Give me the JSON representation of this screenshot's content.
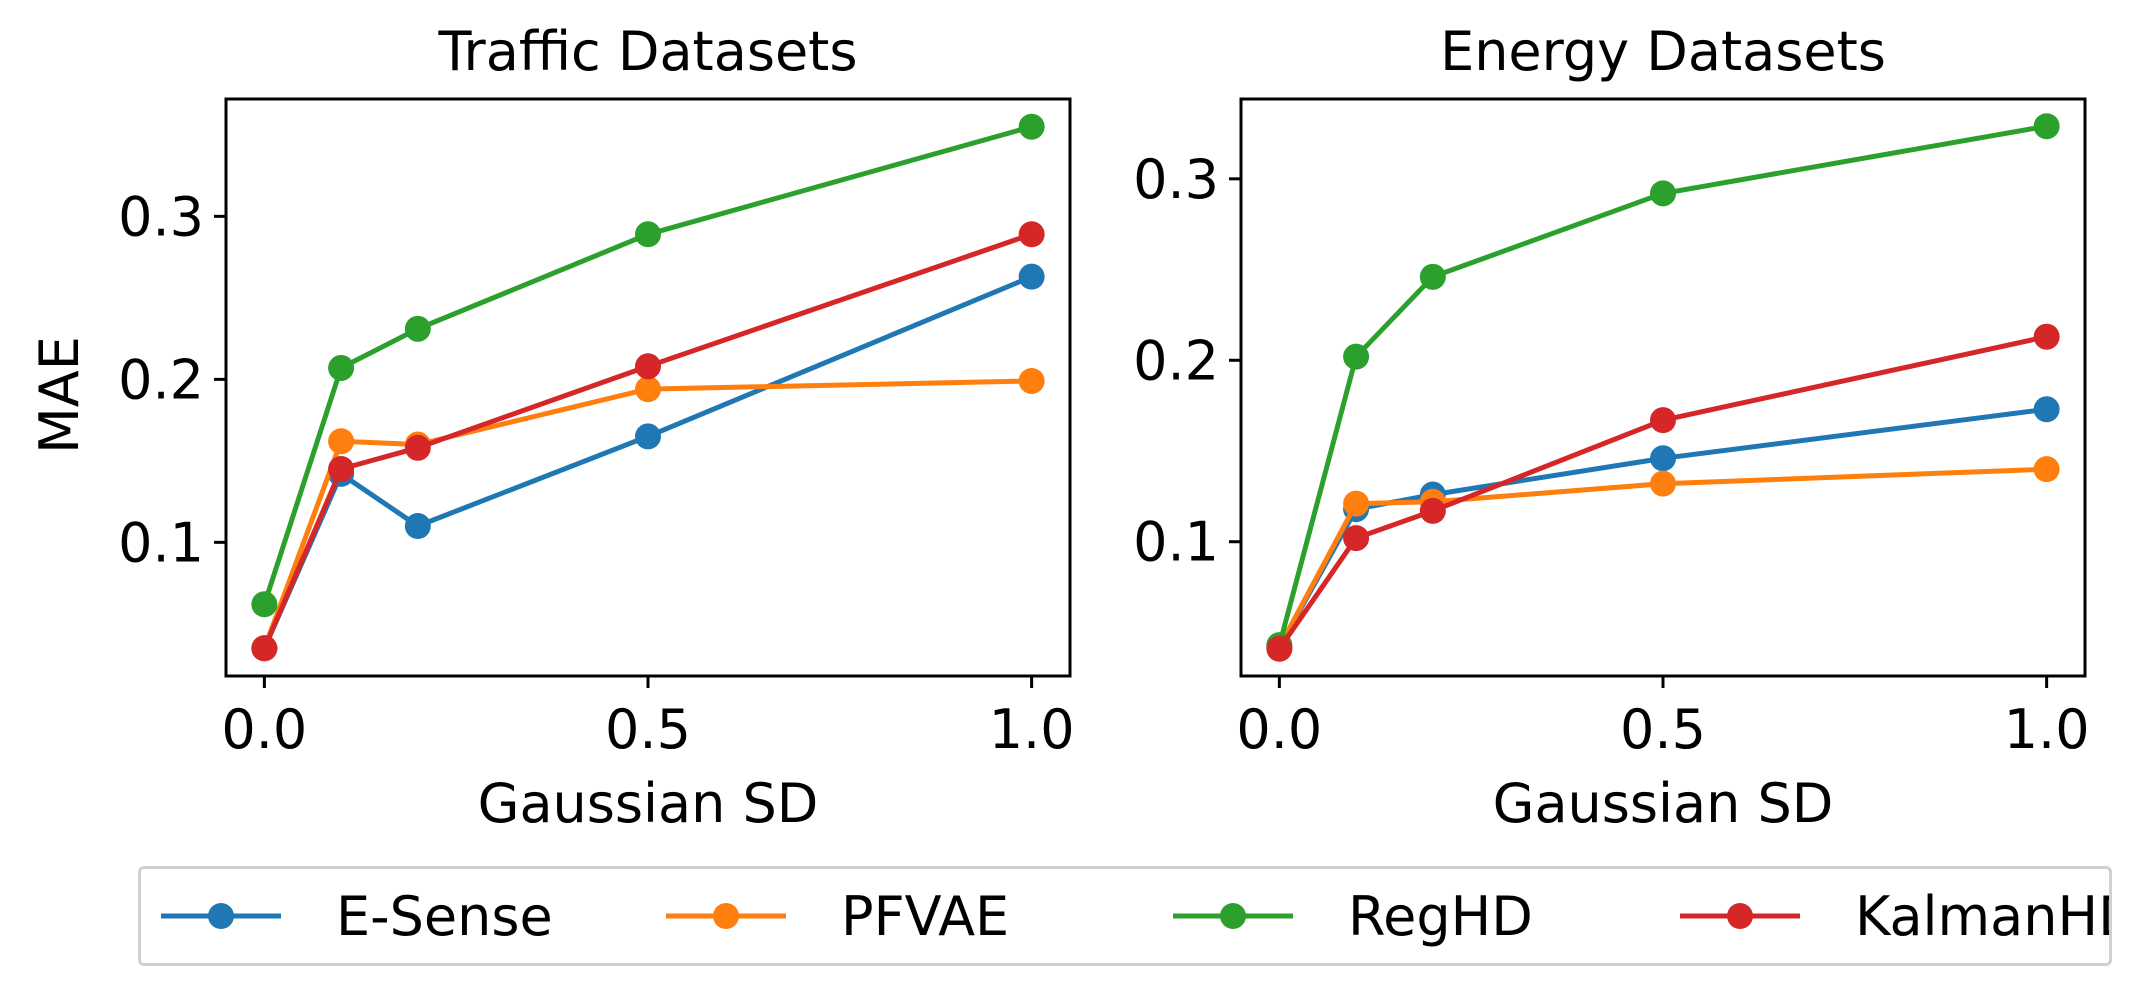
{
  "colors": {
    "E-Sense": "#1f77b4",
    "PFVAE": "#ff7f0e",
    "RegHD": "#2ca02c",
    "KalmanHD": "#d62728"
  },
  "legend": {
    "placement": "bottom",
    "entries": [
      "E-Sense",
      "PFVAE",
      "RegHD",
      "KalmanHD"
    ]
  },
  "chart_data": [
    {
      "type": "line",
      "title": "Traffic Datasets",
      "xlabel": "Gaussian SD",
      "ylabel": "MAE",
      "x": [
        0.0,
        0.1,
        0.2,
        0.5,
        1.0
      ],
      "xlim": [
        -0.05,
        1.05
      ],
      "ylim": [
        0.018,
        0.372
      ],
      "xticks": [
        "0.0",
        "0.5",
        "1.0"
      ],
      "yticks": [
        "0.1",
        "0.2",
        "0.3"
      ],
      "grid": false,
      "series": [
        {
          "name": "E-Sense",
          "values": [
            0.035,
            0.142,
            0.11,
            0.165,
            0.263
          ]
        },
        {
          "name": "PFVAE",
          "values": [
            0.035,
            0.162,
            0.16,
            0.194,
            0.199
          ]
        },
        {
          "name": "RegHD",
          "values": [
            0.062,
            0.207,
            0.231,
            0.289,
            0.355
          ]
        },
        {
          "name": "KalmanHD",
          "values": [
            0.035,
            0.145,
            0.158,
            0.208,
            0.289
          ]
        }
      ]
    },
    {
      "type": "line",
      "title": "Energy Datasets",
      "xlabel": "Gaussian SD",
      "ylabel": "",
      "x": [
        0.0,
        0.1,
        0.2,
        0.5,
        1.0
      ],
      "xlim": [
        -0.05,
        1.05
      ],
      "ylim": [
        0.026,
        0.344
      ],
      "xticks": [
        "0.0",
        "0.5",
        "1.0"
      ],
      "yticks": [
        "0.1",
        "0.2",
        "0.3"
      ],
      "grid": false,
      "series": [
        {
          "name": "E-Sense",
          "values": [
            0.042,
            0.118,
            0.126,
            0.146,
            0.173
          ]
        },
        {
          "name": "PFVAE",
          "values": [
            0.042,
            0.121,
            0.122,
            0.132,
            0.14
          ]
        },
        {
          "name": "RegHD",
          "values": [
            0.043,
            0.202,
            0.246,
            0.292,
            0.329
          ]
        },
        {
          "name": "KalmanHD",
          "values": [
            0.041,
            0.102,
            0.117,
            0.167,
            0.213
          ]
        }
      ]
    }
  ]
}
